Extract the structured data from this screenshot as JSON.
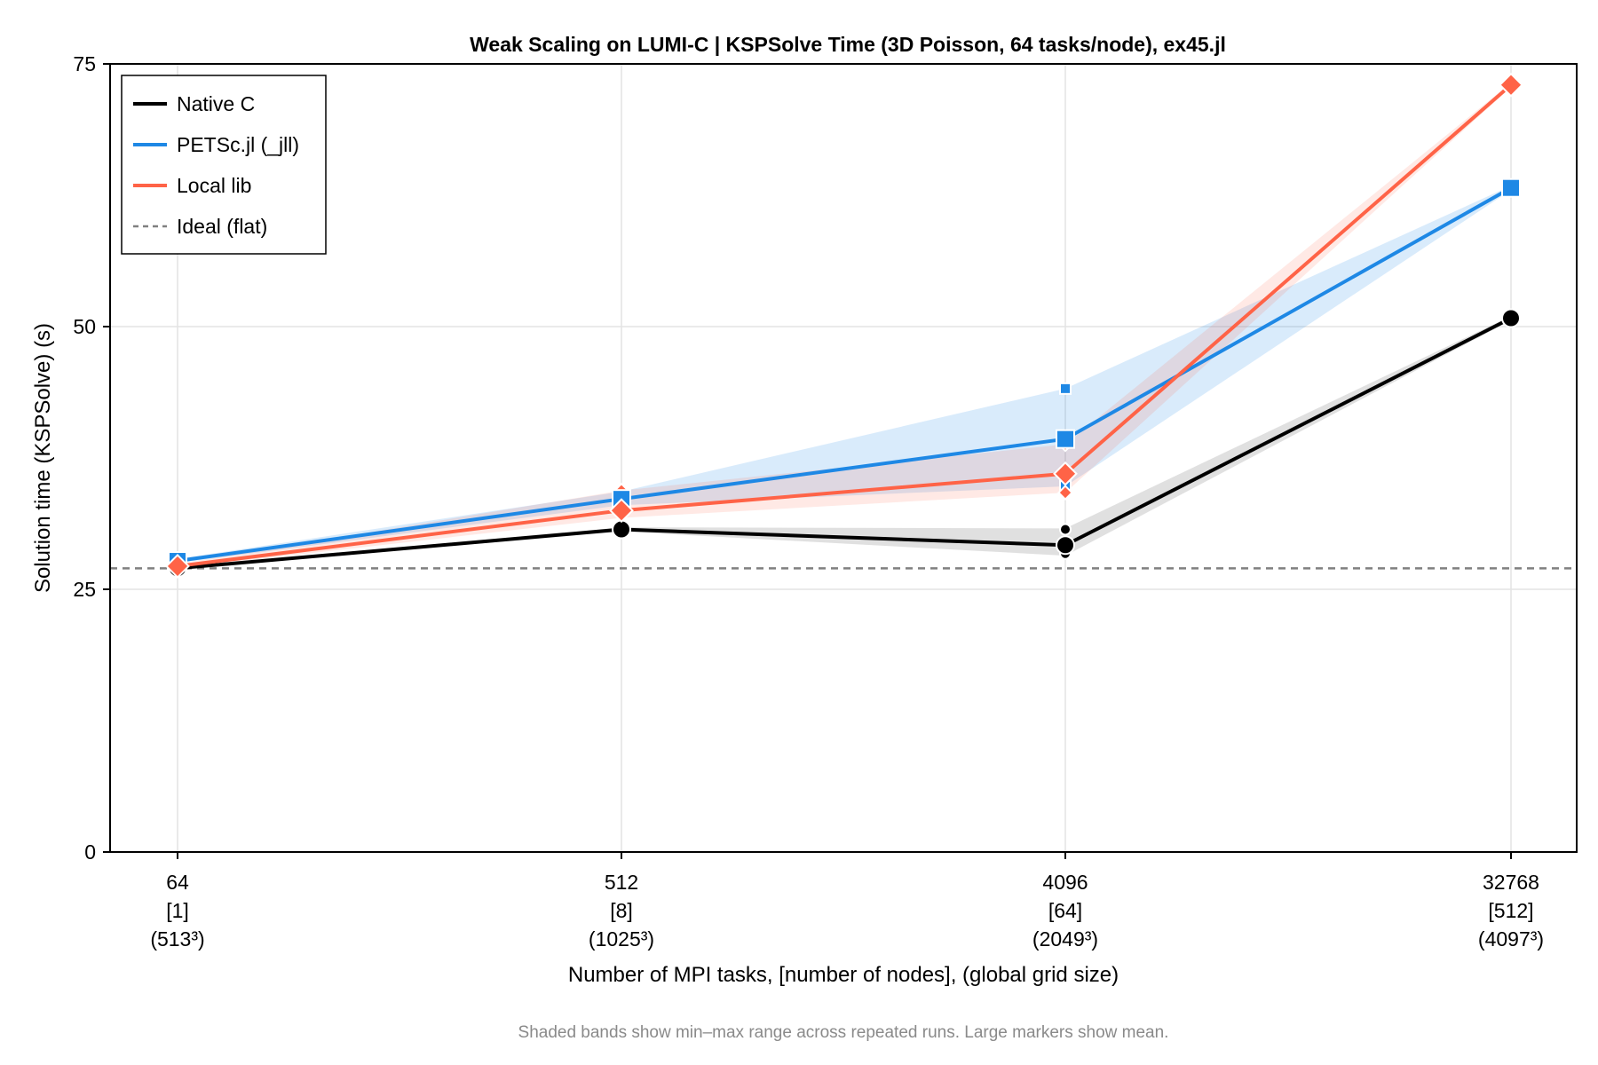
{
  "chart_data": {
    "type": "line",
    "title": "Weak Scaling on LUMI-C | KSPSolve Time (3D Poisson, 64 tasks/node), ex45.jl",
    "xlabel": "Number of MPI tasks, [number of nodes], (global grid size)",
    "ylabel": "Solution time (KSPSolve) (s)",
    "note": "Shaded bands show min–max range across repeated runs. Large markers show mean.",
    "ylim": [
      0,
      75
    ],
    "yticks": [
      "0",
      "25",
      "50",
      "75"
    ],
    "categories": [
      [
        "64",
        "[1]",
        "(513³)"
      ],
      [
        "512",
        "[8]",
        "(1025³)"
      ],
      [
        "4096",
        "[64]",
        "(2049³)"
      ],
      [
        "32768",
        "[512]",
        "(4097³)"
      ]
    ],
    "grid": true,
    "legend_position": "top-left",
    "ideal": {
      "name": "Ideal (flat)",
      "value": 27.0,
      "color": "#808080"
    },
    "series": [
      {
        "name": "Native C",
        "color": "#000000",
        "marker": "circle",
        "mean": [
          27.0,
          30.7,
          29.2,
          50.8
        ],
        "min": [
          26.9,
          30.5,
          28.2,
          50.6
        ],
        "max": [
          27.1,
          30.9,
          30.8,
          51.0
        ],
        "runs": [
          [
            27.0
          ],
          [
            30.7
          ],
          [
            28.4,
            30.7
          ],
          [
            50.8
          ]
        ]
      },
      {
        "name": "PETSc.jl (_jll)",
        "color": "#1e88e5",
        "marker": "square",
        "mean": [
          27.7,
          33.6,
          39.3,
          63.2
        ],
        "min": [
          27.5,
          33.0,
          34.8,
          63.0
        ],
        "max": [
          27.9,
          34.3,
          44.1,
          63.4
        ],
        "runs": [
          [
            27.7
          ],
          [
            33.6
          ],
          [
            44.1,
            34.8
          ],
          [
            63.2
          ]
        ]
      },
      {
        "name": "Local lib",
        "color": "#ff6347",
        "marker": "diamond",
        "mean": [
          27.2,
          32.5,
          36.0,
          73.0
        ],
        "min": [
          27.0,
          31.8,
          34.2,
          72.8
        ],
        "max": [
          27.4,
          34.4,
          38.8,
          73.2
        ],
        "runs": [
          [
            27.2
          ],
          [
            34.4
          ],
          [
            34.2,
            38.8
          ],
          [
            73.0
          ]
        ]
      }
    ]
  }
}
